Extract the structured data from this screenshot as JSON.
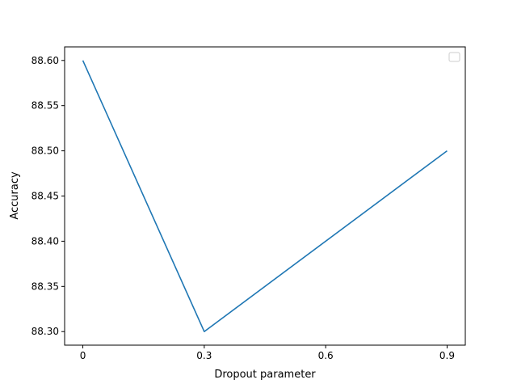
{
  "chart_data": {
    "type": "line",
    "title": "",
    "xlabel": "Dropout parameter",
    "ylabel": "Accuracy",
    "x": [
      0,
      0.3,
      0.6,
      0.9
    ],
    "x_tick_labels": [
      "0",
      "0.3",
      "0.6",
      "0.9"
    ],
    "series": [
      {
        "color": "#1f77b4",
        "x": [
          0,
          0.3,
          0.9
        ],
        "y": [
          88.6,
          88.3,
          88.5
        ]
      }
    ],
    "xlim": [
      -0.045,
      0.945
    ],
    "ylim": [
      88.285,
      88.615
    ],
    "y_ticks": [
      88.3,
      88.35,
      88.4,
      88.45,
      88.5,
      88.55,
      88.6
    ],
    "y_tick_labels": [
      "88.30",
      "88.35",
      "88.40",
      "88.45",
      "88.50",
      "88.55",
      "88.60"
    ],
    "grid": false,
    "legend": {
      "placement": "top-right",
      "entries": []
    }
  }
}
